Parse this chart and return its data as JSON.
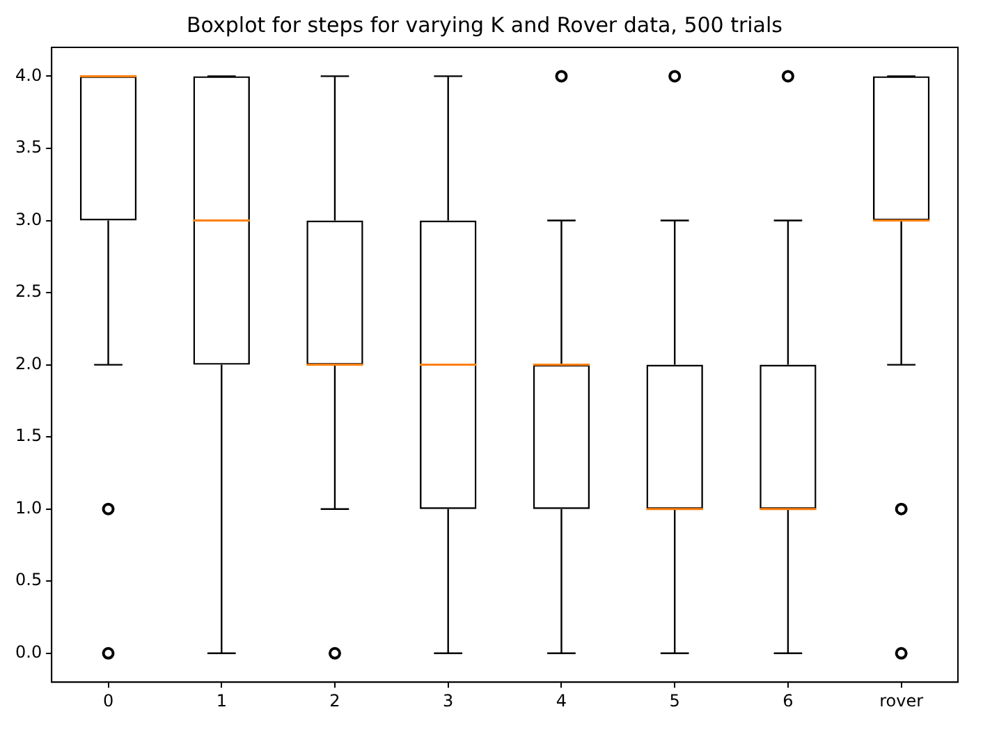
{
  "chart_data": {
    "type": "box",
    "title": "Boxplot for steps for varying K and Rover data, 500 trials",
    "categories": [
      "0",
      "1",
      "2",
      "3",
      "4",
      "5",
      "6",
      "rover"
    ],
    "boxes": [
      {
        "low": 2,
        "q1": 3,
        "median": 4,
        "q3": 4,
        "high": 4,
        "outliers": [
          1,
          0
        ]
      },
      {
        "low": 0,
        "q1": 2,
        "median": 3,
        "q3": 4,
        "high": 4
      },
      {
        "low": 1,
        "q1": 2,
        "median": 2,
        "q3": 3,
        "high": 4,
        "outliers": [
          0
        ]
      },
      {
        "low": 0,
        "q1": 1,
        "median": 2,
        "q3": 3,
        "high": 4
      },
      {
        "low": 0,
        "q1": 1,
        "median": 2,
        "q3": 2,
        "high": 3,
        "outliers": [
          4
        ]
      },
      {
        "low": 0,
        "q1": 1,
        "median": 1,
        "q3": 2,
        "high": 3,
        "outliers": [
          4
        ]
      },
      {
        "low": 0,
        "q1": 1,
        "median": 1,
        "q3": 2,
        "high": 3,
        "outliers": [
          4
        ]
      },
      {
        "low": 2,
        "q1": 3,
        "median": 3,
        "q3": 4,
        "high": 4,
        "outliers": [
          1,
          0
        ]
      }
    ],
    "color": "#000000",
    "ylim": [
      -0.2,
      4.2
    ],
    "yticks": [
      {
        "value": 0,
        "label": "0.0"
      },
      {
        "value": 0.5,
        "label": "0.5"
      },
      {
        "value": 1,
        "label": "1.0"
      },
      {
        "value": 1.5,
        "label": "1.5"
      },
      {
        "value": 2,
        "label": "2.0"
      },
      {
        "value": 2.5,
        "label": "2.5"
      },
      {
        "value": 3,
        "label": "3.0"
      },
      {
        "value": 3.5,
        "label": "3.5"
      },
      {
        "value": 4,
        "label": "4.0"
      }
    ],
    "grid": false,
    "legend": false
  }
}
